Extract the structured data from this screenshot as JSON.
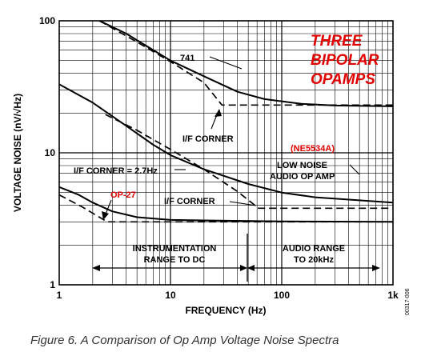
{
  "chart_data": {
    "type": "line",
    "xlabel": "FREQUENCY (Hz)",
    "ylabel": "VOLTAGE NOISE (nV/√Hz)",
    "xscale": "log",
    "yscale": "log",
    "xlim": [
      1,
      1000
    ],
    "ylim": [
      1,
      100
    ],
    "x_ticks": [
      {
        "value": 1,
        "label": "1"
      },
      {
        "value": 10,
        "label": "10"
      },
      {
        "value": 100,
        "label": "100"
      },
      {
        "value": 1000,
        "label": "1k"
      }
    ],
    "y_ticks": [
      {
        "value": 1,
        "label": "1"
      },
      {
        "value": 10,
        "label": "10"
      },
      {
        "value": 100,
        "label": "100"
      }
    ],
    "grid": true,
    "series": [
      {
        "name": "741",
        "style": "solid",
        "points": [
          [
            2.3,
            100
          ],
          [
            4,
            80
          ],
          [
            7,
            60
          ],
          [
            10,
            50
          ],
          [
            20,
            38
          ],
          [
            40,
            29
          ],
          [
            70,
            25.5
          ],
          [
            150,
            23.5
          ],
          [
            300,
            22.8
          ],
          [
            1000,
            22.5
          ]
        ]
      },
      {
        "name": "741",
        "style": "dashed",
        "points": [
          [
            2.3,
            100
          ],
          [
            5,
            69
          ],
          [
            10,
            49
          ],
          [
            20,
            34
          ],
          [
            29,
            23
          ],
          [
            1000,
            23
          ]
        ]
      },
      {
        "name": "NE5534A",
        "style": "solid",
        "points": [
          [
            1,
            33
          ],
          [
            2,
            24
          ],
          [
            4,
            16
          ],
          [
            7,
            11.5
          ],
          [
            10,
            9.6
          ],
          [
            20,
            7.5
          ],
          [
            50,
            5.8
          ],
          [
            100,
            5
          ],
          [
            200,
            4.6
          ],
          [
            1000,
            4.2
          ]
        ]
      },
      {
        "name": "NE5534A",
        "style": "dashed",
        "points": [
          [
            2.6,
            19.5
          ],
          [
            5,
            14.8
          ],
          [
            10,
            10.6
          ],
          [
            20,
            7.5
          ],
          [
            40,
            5.1
          ],
          [
            62,
            3.8
          ],
          [
            1000,
            3.8
          ]
        ]
      },
      {
        "name": "OP-27",
        "style": "solid",
        "points": [
          [
            1,
            5.5
          ],
          [
            1.5,
            4.8
          ],
          [
            2,
            4.2
          ],
          [
            3,
            3.6
          ],
          [
            5,
            3.25
          ],
          [
            10,
            3.1
          ],
          [
            100,
            3.02
          ],
          [
            1000,
            3.0
          ]
        ]
      },
      {
        "name": "OP-27",
        "style": "dashed",
        "points": [
          [
            1,
            4.8
          ],
          [
            1.6,
            3.9
          ],
          [
            2.7,
            3.0
          ],
          [
            1000,
            3.0
          ]
        ]
      }
    ],
    "annotations": [
      {
        "text": "741"
      },
      {
        "text": "I/F CORNER"
      },
      {
        "text": "I/F CORNER = 2.7Hz"
      },
      {
        "text": "I/F CORNER"
      },
      {
        "text": "OP-27"
      },
      {
        "text": "(NE5534A)"
      },
      {
        "text": "LOW NOISE"
      },
      {
        "text": "AUDIO OP AMP"
      },
      {
        "text": "INSTRUMENTATION"
      },
      {
        "text": "RANGE TO DC"
      },
      {
        "text": "AUDIO RANGE"
      },
      {
        "text": "TO 20kHz"
      }
    ],
    "ranges": [
      {
        "from": 1.85,
        "to": 70
      },
      {
        "from": 70,
        "to": 900
      }
    ],
    "callout": [
      "THREE",
      "BIPOLAR",
      "OPAMPS"
    ],
    "caption": "Figure 6. A Comparison of Op Amp Voltage Noise Spectra",
    "figure_id": "00317-006",
    "colors": {
      "line": "#000000",
      "annotation_red": "#e00000",
      "grid": "#000000"
    }
  }
}
